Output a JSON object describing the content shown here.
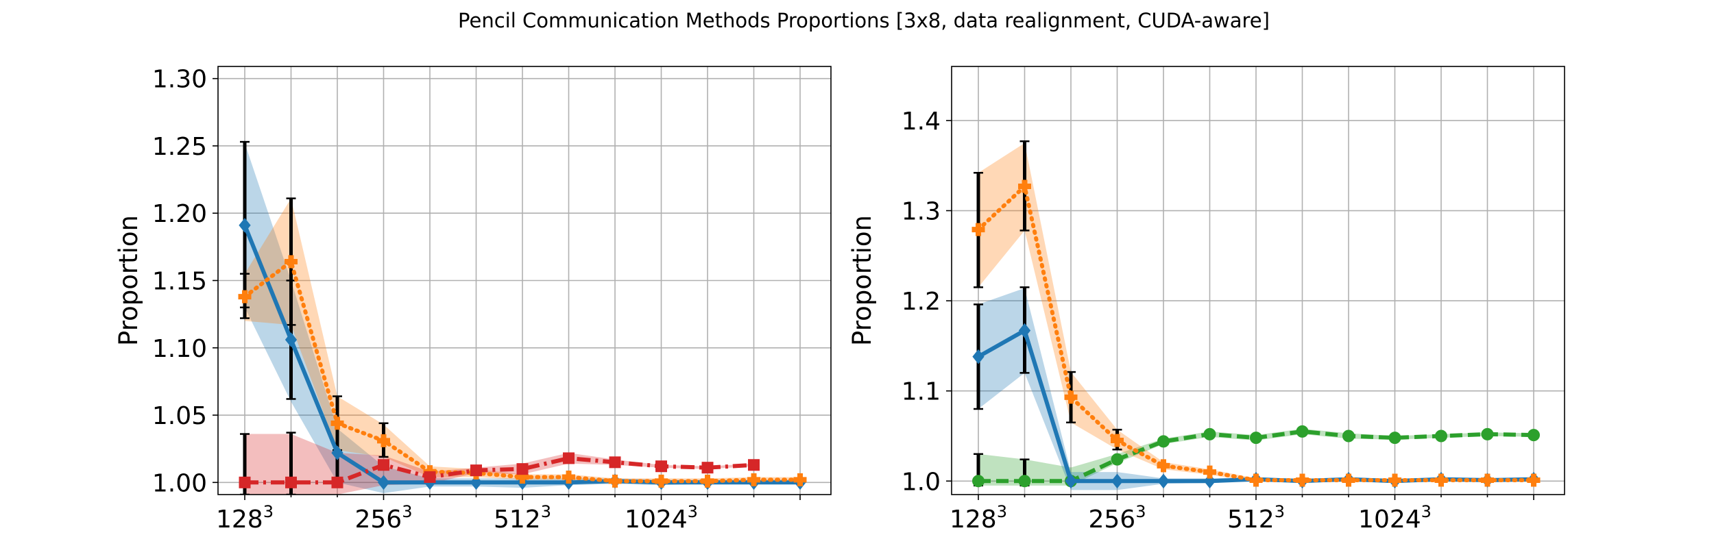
{
  "figure_title": "Pencil Communication Methods Proportions [3x8, data realignment, CUDA-aware]",
  "chart_data": [
    {
      "type": "line",
      "ylabel": "Proportion",
      "xlabel": "",
      "ylim": [
        0.991,
        1.309
      ],
      "yticks": [
        1.0,
        1.05,
        1.1,
        1.15,
        1.2,
        1.25,
        1.3
      ],
      "ytick_labels": [
        "1.00",
        "1.05",
        "1.10",
        "1.15",
        "1.20",
        "1.25",
        "1.30"
      ],
      "xticks_major": [
        {
          "x": 0,
          "base": "128",
          "exp": "3"
        },
        {
          "x": 3,
          "base": "256",
          "exp": "3"
        },
        {
          "x": 6,
          "base": "512",
          "exp": "3"
        },
        {
          "x": 9,
          "base": "1024",
          "exp": "3"
        }
      ],
      "x_grid_count": 13,
      "grid": true,
      "series": [
        {
          "color": "#1f77b4",
          "linestyle": "solid",
          "marker": "diamond",
          "x": [
            0,
            1,
            2,
            3,
            4,
            5,
            6,
            7,
            8,
            9,
            10,
            11,
            12
          ],
          "y": [
            1.191,
            1.106,
            1.022,
            1.0,
            1.0,
            1.0,
            1.0,
            1.0,
            1.001,
            1.0,
            1.0,
            1.0,
            1.0
          ],
          "band_lower": [
            1.13,
            1.06,
            1.0,
            0.992,
            0.997,
            0.997,
            0.996,
            0.998,
            0.999,
            0.998,
            0.999,
            0.999,
            0.999
          ],
          "band_upper": [
            1.252,
            1.15,
            1.04,
            1.012,
            1.003,
            1.003,
            1.003,
            1.003,
            1.003,
            1.002,
            1.002,
            1.002,
            1.002
          ],
          "err_lower": [
            1.13,
            1.062,
            1.001,
            null,
            null,
            null,
            null,
            null,
            null,
            null,
            null,
            null,
            null
          ],
          "err_upper": [
            1.253,
            1.15,
            1.043,
            null,
            null,
            null,
            null,
            null,
            null,
            null,
            null,
            null,
            null
          ]
        },
        {
          "color": "#ff7f0e",
          "linestyle": "dotted",
          "marker": "plus",
          "x": [
            0,
            1,
            2,
            3,
            4,
            5,
            6,
            7,
            8,
            9,
            10,
            11,
            12
          ],
          "y": [
            1.138,
            1.164,
            1.044,
            1.031,
            1.008,
            1.007,
            1.004,
            1.004,
            1.001,
            1.001,
            1.001,
            1.002,
            1.002
          ],
          "band_lower": [
            1.12,
            1.117,
            1.024,
            1.019,
            1.004,
            1.004,
            1.002,
            1.002,
            1.0,
            1.0,
            1.0,
            1.0,
            1.0
          ],
          "band_upper": [
            1.155,
            1.211,
            1.064,
            1.043,
            1.012,
            1.01,
            1.006,
            1.006,
            1.003,
            1.003,
            1.003,
            1.004,
            1.004
          ],
          "err_lower": [
            1.122,
            1.117,
            1.024,
            1.019,
            null,
            null,
            null,
            null,
            null,
            null,
            null,
            null,
            null
          ],
          "err_upper": [
            1.155,
            1.211,
            1.064,
            1.044,
            null,
            null,
            null,
            null,
            null,
            null,
            null,
            null,
            null
          ]
        },
        {
          "color": "#d62728",
          "linestyle": "dashdot",
          "marker": "square",
          "x": [
            0,
            1,
            2,
            3,
            4,
            5,
            6,
            7,
            8,
            9,
            10,
            11
          ],
          "y": [
            1.0,
            1.0,
            1.0,
            1.013,
            1.004,
            1.009,
            1.01,
            1.018,
            1.015,
            1.012,
            1.011,
            1.013
          ],
          "band_lower": [
            0.991,
            0.991,
            0.991,
            0.998,
            0.999,
            1.007,
            1.006,
            1.014,
            1.013,
            1.011,
            1.01,
            1.012
          ],
          "band_upper": [
            1.036,
            1.036,
            1.022,
            1.02,
            1.008,
            1.011,
            1.014,
            1.022,
            1.017,
            1.013,
            1.012,
            1.014
          ],
          "err_lower": [
            0.991,
            0.991,
            null,
            null,
            null,
            null,
            null,
            null,
            null,
            null,
            null,
            null
          ],
          "err_upper": [
            1.036,
            1.037,
            null,
            null,
            null,
            null,
            null,
            null,
            null,
            null,
            null,
            null
          ]
        }
      ]
    },
    {
      "type": "line",
      "ylabel": "Proportion",
      "xlabel": "",
      "ylim": [
        0.985,
        1.46
      ],
      "yticks": [
        1.0,
        1.1,
        1.2,
        1.3,
        1.4
      ],
      "ytick_labels": [
        "1.0",
        "1.1",
        "1.2",
        "1.3",
        "1.4"
      ],
      "xticks_major": [
        {
          "x": 0,
          "base": "128",
          "exp": "3"
        },
        {
          "x": 3,
          "base": "256",
          "exp": "3"
        },
        {
          "x": 6,
          "base": "512",
          "exp": "3"
        },
        {
          "x": 9,
          "base": "1024",
          "exp": "3"
        }
      ],
      "x_grid_count": 13,
      "grid": true,
      "series": [
        {
          "color": "#2ca02c",
          "linestyle": "dashed",
          "marker": "circle",
          "x": [
            0,
            1,
            2,
            3,
            4,
            5,
            6,
            7,
            8,
            9,
            10,
            11,
            12
          ],
          "y": [
            1.0,
            1.0,
            1.0,
            1.024,
            1.044,
            1.052,
            1.048,
            1.055,
            1.05,
            1.048,
            1.05,
            1.052,
            1.051
          ],
          "band_lower": [
            0.995,
            0.995,
            0.995,
            1.02,
            1.041,
            1.049,
            1.045,
            1.052,
            1.047,
            1.046,
            1.048,
            1.05,
            1.049
          ],
          "band_upper": [
            1.03,
            1.024,
            1.015,
            1.03,
            1.047,
            1.055,
            1.051,
            1.058,
            1.053,
            1.05,
            1.052,
            1.054,
            1.053
          ],
          "err_lower": [
            0.995,
            0.995,
            null,
            null,
            null,
            null,
            null,
            null,
            null,
            null,
            null,
            null,
            null
          ],
          "err_upper": [
            1.03,
            1.024,
            null,
            null,
            null,
            null,
            null,
            null,
            null,
            null,
            null,
            null,
            null
          ]
        },
        {
          "color": "#1f77b4",
          "linestyle": "solid",
          "marker": "diamond",
          "x": [
            0,
            1,
            2,
            3,
            4,
            5,
            6,
            7,
            8,
            9,
            10,
            11,
            12
          ],
          "y": [
            1.138,
            1.167,
            1.0,
            1.0,
            1.0,
            1.0,
            1.002,
            1.0,
            1.002,
            1.0,
            1.002,
            1.001,
            1.002
          ],
          "band_lower": [
            1.08,
            1.12,
            0.99,
            0.99,
            0.997,
            0.998,
            1.0,
            0.998,
            1.0,
            0.998,
            1.0,
            0.999,
            1.0
          ],
          "band_upper": [
            1.196,
            1.214,
            1.01,
            1.01,
            1.003,
            1.003,
            1.004,
            1.002,
            1.004,
            1.002,
            1.004,
            1.003,
            1.004
          ],
          "err_lower": [
            1.08,
            1.12,
            null,
            null,
            null,
            null,
            null,
            null,
            null,
            null,
            null,
            null,
            null
          ],
          "err_upper": [
            1.196,
            1.215,
            null,
            null,
            null,
            null,
            null,
            null,
            null,
            null,
            null,
            null,
            null
          ]
        },
        {
          "color": "#ff7f0e",
          "linestyle": "dotted",
          "marker": "plus",
          "x": [
            0,
            1,
            2,
            3,
            4,
            5,
            6,
            7,
            8,
            9,
            10,
            11,
            12
          ],
          "y": [
            1.279,
            1.327,
            1.093,
            1.045,
            1.017,
            1.01,
            1.001,
            1.001,
            1.001,
            1.001,
            1.001,
            1.001,
            1.001
          ],
          "band_lower": [
            1.215,
            1.278,
            1.065,
            1.035,
            1.013,
            1.007,
            0.999,
            0.999,
            0.999,
            0.999,
            0.999,
            0.999,
            0.999
          ],
          "band_upper": [
            1.342,
            1.375,
            1.121,
            1.057,
            1.021,
            1.013,
            1.003,
            1.003,
            1.003,
            1.003,
            1.003,
            1.003,
            1.003
          ],
          "err_lower": [
            1.215,
            1.278,
            1.065,
            1.035,
            null,
            null,
            null,
            null,
            null,
            null,
            null,
            null,
            null
          ],
          "err_upper": [
            1.342,
            1.377,
            1.121,
            1.057,
            null,
            null,
            null,
            null,
            null,
            null,
            null,
            null,
            null
          ]
        }
      ]
    }
  ]
}
